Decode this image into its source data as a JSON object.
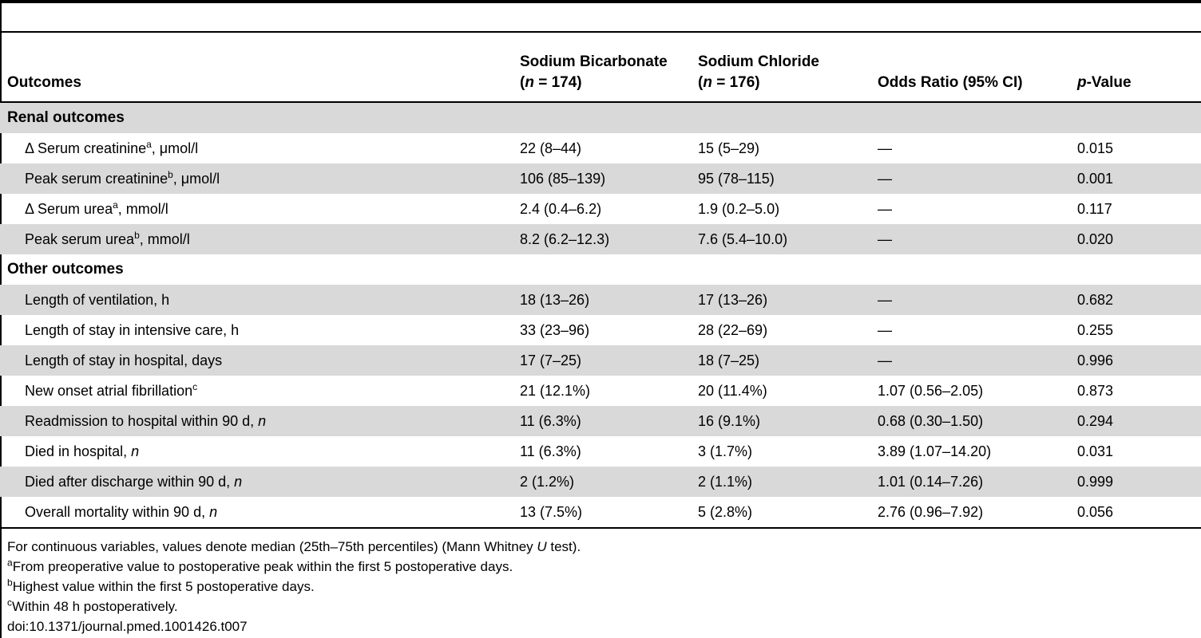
{
  "header": {
    "outcomes": "Outcomes",
    "bicarb_name": "Sodium Bicarbonate",
    "bicarb_open": "(",
    "bicarb_n_var": "n",
    "bicarb_n": " = 174)",
    "chloride_name": "Sodium Chloride",
    "chloride_open": "(",
    "chloride_n_var": "n",
    "chloride_n": " = 176)",
    "odds_ratio": "Odds Ratio (95% CI)",
    "p_var": "p",
    "p_rest": "-Value"
  },
  "sections": {
    "renal": "Renal outcomes",
    "other": "Other outcomes"
  },
  "rows": [
    {
      "label": "Δ Serum creatinine",
      "sup": "a",
      "suffix": ", μmol/l",
      "bicarb": "22 (8–44)",
      "chloride": "15 (5–29)",
      "or": "—",
      "p": "0.015"
    },
    {
      "label": "Peak serum creatinine",
      "sup": "b",
      "suffix": ", μmol/l",
      "bicarb": "106 (85–139)",
      "chloride": "95 (78–115)",
      "or": "—",
      "p": "0.001"
    },
    {
      "label": "Δ Serum urea",
      "sup": "a",
      "suffix": ", mmol/l",
      "bicarb": "2.4 (0.4–6.2)",
      "chloride": "1.9 (0.2–5.0)",
      "or": "—",
      "p": "0.117"
    },
    {
      "label": "Peak serum urea",
      "sup": "b",
      "suffix": ", mmol/l",
      "bicarb": "8.2 (6.2–12.3)",
      "chloride": "7.6 (5.4–10.0)",
      "or": "—",
      "p": "0.020"
    },
    {
      "label": "Length of ventilation, h",
      "bicarb": "18 (13–26)",
      "chloride": "17 (13–26)",
      "or": "—",
      "p": "0.682"
    },
    {
      "label": "Length of stay in intensive care, h",
      "bicarb": "33 (23–96)",
      "chloride": "28 (22–69)",
      "or": "—",
      "p": "0.255"
    },
    {
      "label": "Length of stay in hospital, days",
      "bicarb": "17 (7–25)",
      "chloride": "18 (7–25)",
      "or": "—",
      "p": "0.996"
    },
    {
      "label": "New onset atrial fibrillation",
      "sup": "c",
      "bicarb": "21 (12.1%)",
      "chloride": "20 (11.4%)",
      "or": "1.07 (0.56–2.05)",
      "p": "0.873"
    },
    {
      "label": "Readmission to hospital within 90 d, ",
      "ital": "n",
      "bicarb": "11 (6.3%)",
      "chloride": "16 (9.1%)",
      "or": "0.68 (0.30–1.50)",
      "p": "0.294"
    },
    {
      "label": "Died in hospital, ",
      "ital": "n",
      "bicarb": "11 (6.3%)",
      "chloride": "3 (1.7%)",
      "or": "3.89 (1.07–14.20)",
      "p": "0.031"
    },
    {
      "label": "Died after discharge within 90 d, ",
      "ital": "n",
      "bicarb": "2 (1.2%)",
      "chloride": "2 (1.1%)",
      "or": "1.01 (0.14–7.26)",
      "p": "0.999"
    },
    {
      "label": "Overall mortality within 90 d, ",
      "ital": "n",
      "bicarb": "13 (7.5%)",
      "chloride": "5 (2.8%)",
      "or": "2.76 (0.96–7.92)",
      "p": "0.056"
    }
  ],
  "notes": {
    "line1_a": "For continuous variables, values denote median (25th–75th percentiles) (Mann Whitney ",
    "line1_u": "U",
    "line1_b": " test).",
    "a_sup": "a",
    "a_text": "From preoperative value to postoperative peak within the first 5 postoperative days.",
    "b_sup": "b",
    "b_text": "Highest value within the first 5 postoperative days.",
    "c_sup": "c",
    "c_text": "Within 48 h postoperatively.",
    "doi": "doi:10.1371/journal.pmed.1001426.t007"
  }
}
